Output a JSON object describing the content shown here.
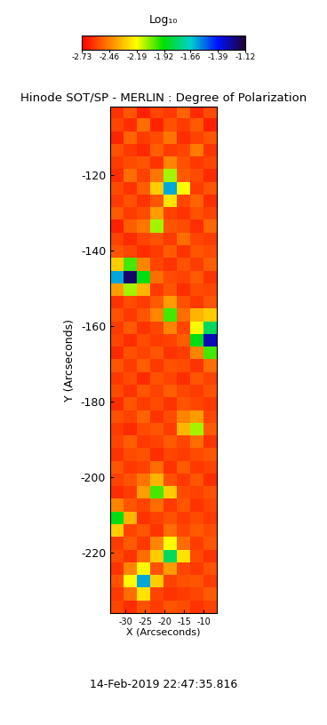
{
  "chart_data": {
    "type": "heatmap",
    "title": "Hinode SOT/SP - MERLIN : Degree of Polarization",
    "x_label": "X (Arcseconds)",
    "y_label": "Y (Arcseconds)",
    "xlim": [
      -33.9,
      -6.6
    ],
    "ylim": [
      -236,
      -102
    ],
    "xticks": [
      -30,
      -25,
      -20,
      -15,
      -10
    ],
    "yticks": [
      -220,
      -200,
      -180,
      -160,
      -140,
      -120
    ],
    "colorbar_label": "Log₁₀",
    "colorbar_range": [
      -2.73,
      -1.12
    ],
    "colorbar_ticks": [
      -2.73,
      -2.46,
      -2.19,
      -1.92,
      -1.66,
      -1.39,
      -1.12
    ],
    "annotations": [
      "14-Feb-2019 22:47:35.816"
    ],
    "cells": [
      [
        -2.62,
        -2.55,
        -2.66,
        -2.58,
        -2.61,
        -2.52,
        -2.64,
        -2.57
      ],
      [
        -2.58,
        -2.63,
        -2.5,
        -2.65,
        -2.56,
        -2.6,
        -2.54,
        -2.66
      ],
      [
        -2.65,
        -2.52,
        -2.6,
        -2.57,
        -2.48,
        -2.63,
        -2.59,
        -2.55
      ],
      [
        -2.56,
        -2.61,
        -2.64,
        -2.53,
        -2.6,
        -2.58,
        -2.47,
        -2.62
      ],
      [
        -2.6,
        -2.57,
        -2.55,
        -2.62,
        -2.45,
        -2.56,
        -2.61,
        -2.58
      ],
      [
        -2.63,
        -2.5,
        -2.59,
        -2.48,
        -2.1,
        -2.54,
        -2.57,
        -2.64
      ],
      [
        -2.57,
        -2.62,
        -2.53,
        -2.3,
        -1.6,
        -2.2,
        -2.6,
        -2.55
      ],
      [
        -2.61,
        -2.56,
        -2.62,
        -2.55,
        -2.25,
        -2.58,
        -2.52,
        -2.63
      ],
      [
        -2.54,
        -2.6,
        -2.57,
        -2.4,
        -2.59,
        -2.62,
        -2.56,
        -2.59
      ],
      [
        -2.66,
        -2.53,
        -2.48,
        -2.1,
        -2.55,
        -2.57,
        -2.63,
        -2.51
      ],
      [
        -2.59,
        -2.64,
        -2.58,
        -2.56,
        -2.61,
        -2.5,
        -2.58,
        -2.6
      ],
      [
        -2.55,
        -2.58,
        -2.63,
        -2.6,
        -2.54,
        -2.62,
        -2.55,
        -2.57
      ],
      [
        -2.3,
        -2.0,
        -2.45,
        -2.58,
        -2.62,
        -2.56,
        -2.6,
        -2.53
      ],
      [
        -1.6,
        -1.2,
        -1.9,
        -2.5,
        -2.57,
        -2.59,
        -2.54,
        -2.62
      ],
      [
        -2.4,
        -2.1,
        -2.35,
        -2.61,
        -2.55,
        -2.63,
        -2.57,
        -2.58
      ],
      [
        -2.62,
        -2.57,
        -2.6,
        -2.54,
        -2.4,
        -2.56,
        -2.61,
        -2.55
      ],
      [
        -2.56,
        -2.61,
        -2.55,
        -2.45,
        -2.0,
        -2.5,
        -2.35,
        -2.3
      ],
      [
        -2.6,
        -2.54,
        -2.62,
        -2.58,
        -2.45,
        -2.58,
        -2.2,
        -1.8
      ],
      [
        -2.58,
        -2.63,
        -2.57,
        -2.6,
        -2.59,
        -2.54,
        -1.9,
        -1.3
      ],
      [
        -2.64,
        -2.56,
        -2.59,
        -2.55,
        -2.62,
        -2.6,
        -2.45,
        -2.0
      ],
      [
        -2.55,
        -2.6,
        -2.53,
        -2.61,
        -2.56,
        -2.57,
        -2.62,
        -2.5
      ],
      [
        -2.61,
        -2.57,
        -2.64,
        -2.56,
        -2.58,
        -2.63,
        -2.55,
        -2.59
      ],
      [
        -2.57,
        -2.62,
        -2.55,
        -2.59,
        -2.53,
        -2.58,
        -2.6,
        -2.56
      ],
      [
        -2.63,
        -2.55,
        -2.6,
        -2.57,
        -2.62,
        -2.55,
        -2.58,
        -2.61
      ],
      [
        -2.56,
        -2.59,
        -2.52,
        -2.62,
        -2.57,
        -2.45,
        -2.4,
        -2.58
      ],
      [
        -2.6,
        -2.64,
        -2.57,
        -2.55,
        -2.6,
        -2.35,
        -2.1,
        -2.54
      ],
      [
        -2.58,
        -2.53,
        -2.61,
        -2.59,
        -2.54,
        -2.58,
        -2.5,
        -2.62
      ],
      [
        -2.62,
        -2.57,
        -2.56,
        -2.63,
        -2.58,
        -2.6,
        -2.57,
        -2.55
      ],
      [
        -2.55,
        -2.61,
        -2.59,
        -2.5,
        -2.62,
        -2.54,
        -2.61,
        -2.59
      ],
      [
        -2.59,
        -2.56,
        -2.48,
        -2.35,
        -2.56,
        -2.61,
        -2.55,
        -2.63
      ],
      [
        -2.63,
        -2.6,
        -2.4,
        -2.0,
        -2.3,
        -2.57,
        -2.59,
        -2.56
      ],
      [
        -2.45,
        -2.55,
        -2.58,
        -2.5,
        -2.61,
        -2.55,
        -2.62,
        -2.58
      ],
      [
        -1.9,
        -2.35,
        -2.62,
        -2.59,
        -2.56,
        -2.6,
        -2.57,
        -2.61
      ],
      [
        -2.3,
        -2.58,
        -2.55,
        -2.62,
        -2.5,
        -2.58,
        -2.54,
        -2.57
      ],
      [
        -2.6,
        -2.54,
        -2.61,
        -2.45,
        -2.2,
        -2.5,
        -2.6,
        -2.55
      ],
      [
        -2.57,
        -2.62,
        -2.5,
        -2.3,
        -1.8,
        -2.25,
        -2.57,
        -2.62
      ],
      [
        -2.62,
        -2.45,
        -2.2,
        -2.56,
        -2.4,
        -2.58,
        -2.61,
        -2.56
      ],
      [
        -2.56,
        -2.2,
        -1.6,
        -2.3,
        -2.59,
        -2.56,
        -2.55,
        -2.6
      ],
      [
        -2.61,
        -2.5,
        -2.25,
        -2.58,
        -2.62,
        -2.6,
        -2.58,
        -2.54
      ],
      [
        -2.58,
        -2.63,
        -2.56,
        -2.6,
        -2.55,
        -2.57,
        -2.62,
        -2.59
      ]
    ]
  }
}
